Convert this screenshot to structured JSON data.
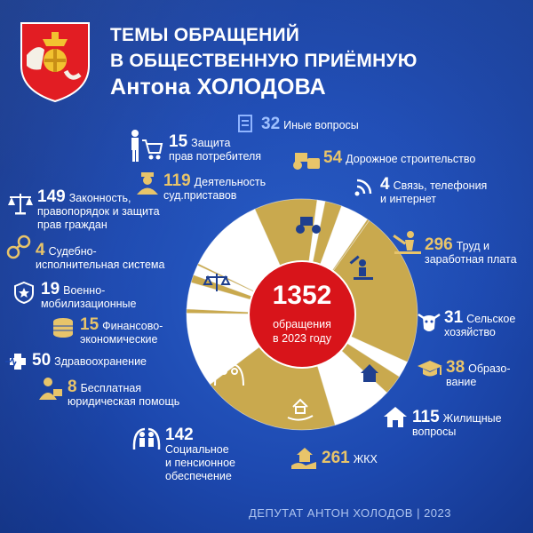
{
  "header": {
    "line1": "ТЕМЫ ОБРАЩЕНИЙ",
    "line2": "В ОБЩЕСТВЕННУЮ ПРИЁМНУЮ",
    "line3": "Антона ХОЛОДОВА"
  },
  "center": {
    "total": "1352",
    "caption1": "обращения",
    "caption2": "в 2023 году"
  },
  "footer": "ДЕПУТАТ АНТОН ХОЛОДОВ | 2023",
  "colors": {
    "gold": "#c9a94e",
    "white": "#ffffff",
    "center_red": "#d8141a",
    "background": "#1d49b0"
  },
  "chart_data": {
    "type": "pie",
    "title": "ТЕМЫ ОБРАЩЕНИЙ В ОБЩЕСТВЕННУЮ ПРИЁМНУЮ Антона ХОЛОДОВА",
    "total": 1352,
    "slices": [
      {
        "value": 296,
        "label": "Труд и заработная плата",
        "icon": "worker-icon"
      },
      {
        "value": 31,
        "label": "Сельское хозяйство",
        "icon": "cow-icon"
      },
      {
        "value": 38,
        "label": "Образо-вание",
        "icon": "graduation-cap-icon"
      },
      {
        "value": 115,
        "label": "Жилищные вопросы",
        "icon": "house-icon"
      },
      {
        "value": 261,
        "label": "ЖКХ",
        "icon": "hand-house-icon"
      },
      {
        "value": 142,
        "label": "Социальное и пенсионное обеспечение",
        "icon": "family-icon"
      },
      {
        "value": 8,
        "label": "Бесплатная юридическая помощь",
        "icon": "lawyer-icon"
      },
      {
        "value": 50,
        "label": "Здравоохранение",
        "icon": "medical-icon"
      },
      {
        "value": 15,
        "label": "Финансово-экономические",
        "icon": "coins-icon"
      },
      {
        "value": 19,
        "label": "Военно-мобилизационные",
        "icon": "military-star-icon"
      },
      {
        "value": 4,
        "label": "Судебно-исполнительная система",
        "icon": "handcuffs-icon"
      },
      {
        "value": 149,
        "label": "Законность, правопорядок и защита прав граждан",
        "icon": "scales-icon"
      },
      {
        "value": 119,
        "label": "Деятельность суд.приставов",
        "icon": "bailiff-icon"
      },
      {
        "value": 15,
        "label": "Защита прав потребителя",
        "icon": "shopping-cart-icon"
      },
      {
        "value": 32,
        "label": "Иные вопросы",
        "icon": "document-icon"
      },
      {
        "value": 54,
        "label": "Дорожное строительство",
        "icon": "road-roller-icon"
      },
      {
        "value": 4,
        "label": "Связь, телефония и интернет",
        "icon": "wifi-icon"
      }
    ]
  },
  "labels": [
    {
      "num": "32",
      "text": "Иные вопросы"
    },
    {
      "num": "15",
      "text1": "Защита",
      "text2": "прав потребителя"
    },
    {
      "num": "54",
      "text": "Дорожное строительство"
    },
    {
      "num": "119",
      "text1": "Деятельность",
      "text2": "суд.приставов"
    },
    {
      "num": "4",
      "text1": "Связь, телефония",
      "text2": "и интернет"
    },
    {
      "num": "149",
      "text1": "Законность,",
      "text2": "правопорядок и защита",
      "text3": "прав граждан"
    },
    {
      "num": "296",
      "text1": "Труд и",
      "text2": "заработная плата"
    },
    {
      "num": "4",
      "text1": "Судебно-",
      "text2": "исполнительная система"
    },
    {
      "num": "19",
      "text1": "Военно-",
      "text2": "мобилизационные"
    },
    {
      "num": "31",
      "text1": "Сельское",
      "text2": "хозяйство"
    },
    {
      "num": "15",
      "text1": "Финансово-",
      "text2": "экономические"
    },
    {
      "num": "38",
      "text1": "Образо-",
      "text2": "вание"
    },
    {
      "num": "50",
      "text": "Здравоохранение"
    },
    {
      "num": "8",
      "text1": "Бесплатная",
      "text2": "юридическая помощь"
    },
    {
      "num": "115",
      "text1": "Жилищные",
      "text2": "вопросы"
    },
    {
      "num": "142",
      "text1": "Социальное",
      "text2": "и пенсионное",
      "text3": "обеспечение"
    },
    {
      "num": "261",
      "text": "ЖКХ"
    }
  ]
}
